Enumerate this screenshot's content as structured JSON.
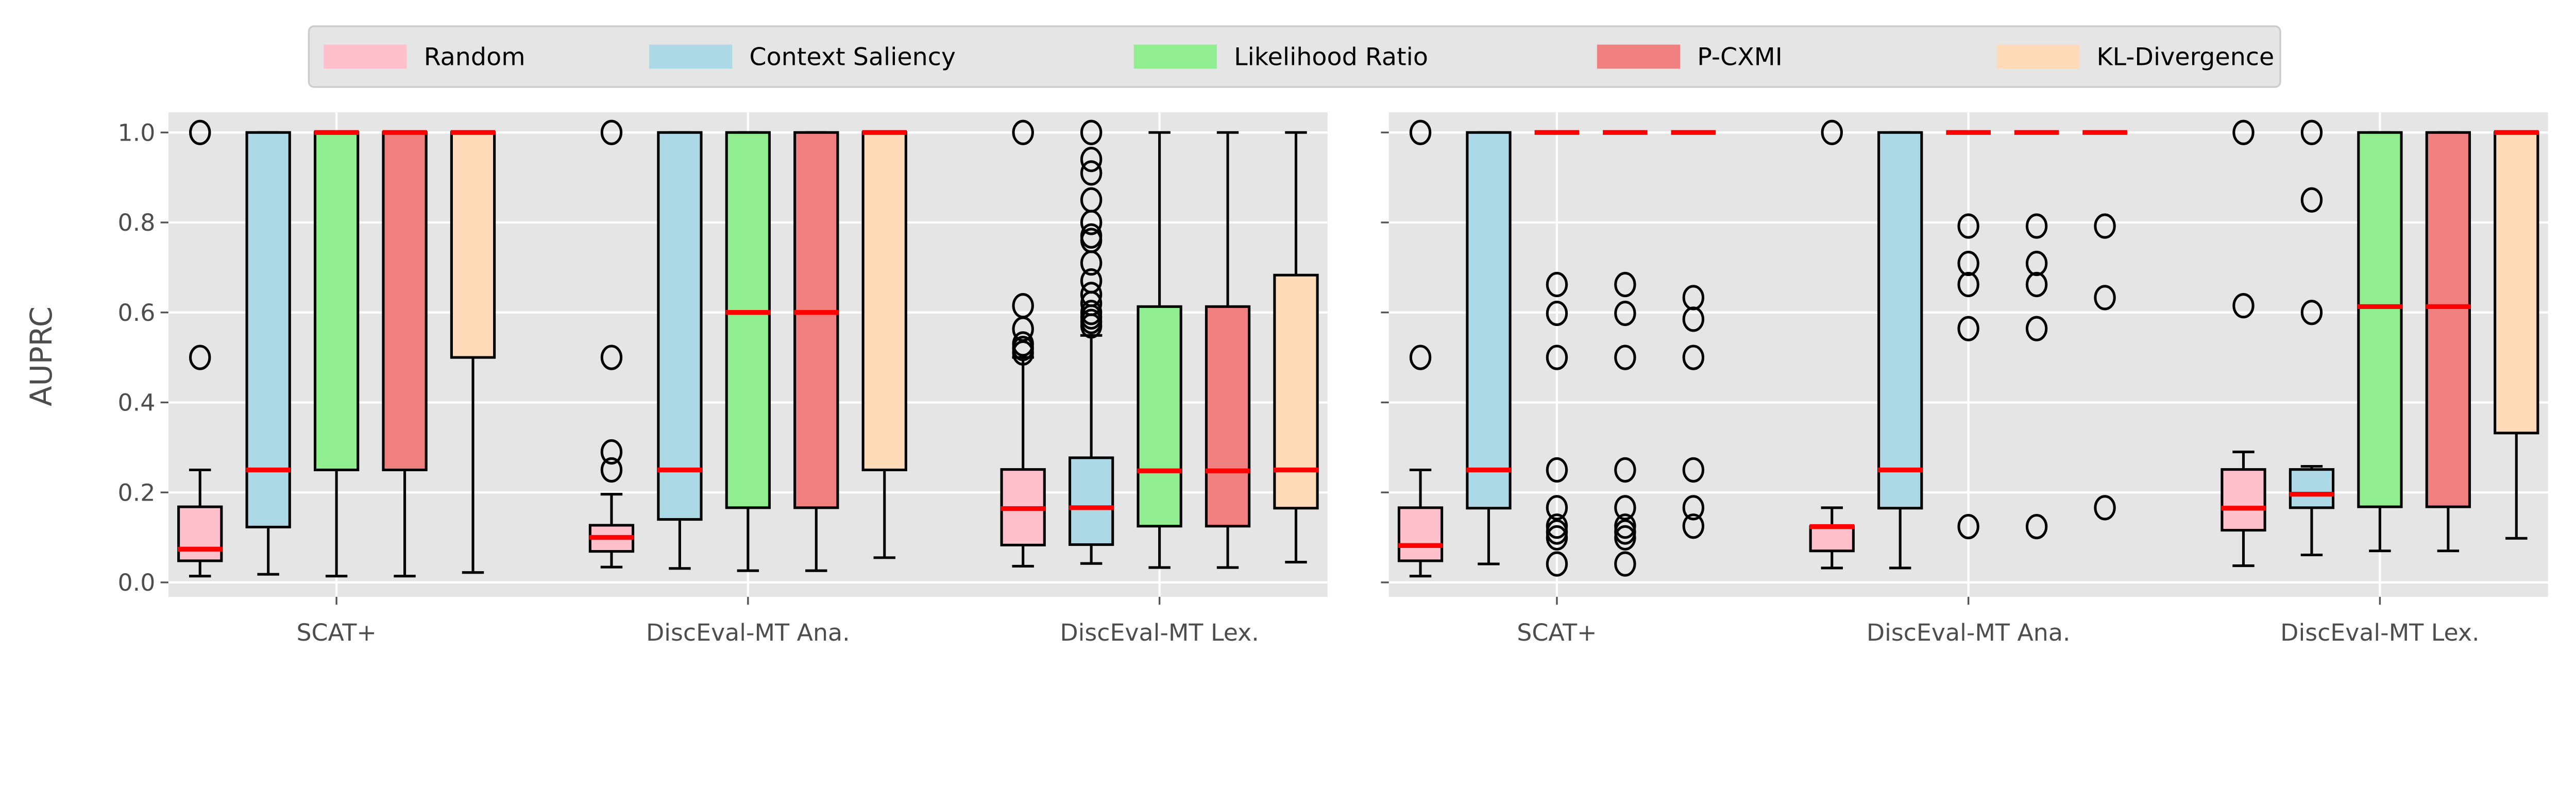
{
  "chart_data": {
    "type": "boxplot",
    "ylabel": "AUPRC",
    "ylim": [
      -0.035,
      1.035
    ],
    "yticks": [
      "0.0",
      "0.2",
      "0.4",
      "0.6",
      "0.8",
      "1.0"
    ],
    "grid": true,
    "legend_placement": "top-center",
    "categories": [
      "SCAT+",
      "DiscEval-MT Ana.",
      "DiscEval-MT Lex."
    ],
    "methods": [
      {
        "name": "Random",
        "color": "#ffc0cb"
      },
      {
        "name": "Context Saliency",
        "color": "#add8e6"
      },
      {
        "name": "Likelihood Ratio",
        "color": "#90ee90"
      },
      {
        "name": "P-CXMI",
        "color": "#f08080"
      },
      {
        "name": "KL-Divergence",
        "color": "#ffdab9"
      }
    ],
    "median_color": "#ff0000",
    "panels": [
      {
        "groups": [
          [
            {
              "whislo": 0.014,
              "q1": 0.048,
              "med": 0.074,
              "q3": 0.168,
              "whishi": 0.25,
              "fliers": [
                1.0,
                0.5
              ]
            },
            {
              "whislo": 0.018,
              "q1": 0.123,
              "med": 0.25,
              "q3": 1.0,
              "whishi": 1.0,
              "fliers": []
            },
            {
              "whislo": 0.014,
              "q1": 0.25,
              "med": 1.0,
              "q3": 1.0,
              "whishi": 1.0,
              "fliers": []
            },
            {
              "whislo": 0.014,
              "q1": 0.25,
              "med": 1.0,
              "q3": 1.0,
              "whishi": 1.0,
              "fliers": []
            },
            {
              "whislo": 0.022,
              "q1": 0.5,
              "med": 1.0,
              "q3": 1.0,
              "whishi": 1.0,
              "fliers": []
            }
          ],
          [
            {
              "whislo": 0.034,
              "q1": 0.069,
              "med": 0.1,
              "q3": 0.127,
              "whishi": 0.196,
              "fliers": [
                1.0,
                0.5,
                0.29,
                0.25
              ]
            },
            {
              "whislo": 0.031,
              "q1": 0.14,
              "med": 0.25,
              "q3": 1.0,
              "whishi": 1.0,
              "fliers": []
            },
            {
              "whislo": 0.026,
              "q1": 0.166,
              "med": 0.6,
              "q3": 1.0,
              "whishi": 1.0,
              "fliers": []
            },
            {
              "whislo": 0.026,
              "q1": 0.166,
              "med": 0.6,
              "q3": 1.0,
              "whishi": 1.0,
              "fliers": []
            },
            {
              "whislo": 0.055,
              "q1": 0.25,
              "med": 1.0,
              "q3": 1.0,
              "whishi": 1.0,
              "fliers": []
            }
          ],
          [
            {
              "whislo": 0.036,
              "q1": 0.083,
              "med": 0.164,
              "q3": 0.251,
              "whishi": 0.5,
              "fliers": [
                1.0,
                0.615,
                0.563,
                0.53,
                0.52,
                0.51
              ]
            },
            {
              "whislo": 0.042,
              "q1": 0.084,
              "med": 0.166,
              "q3": 0.277,
              "whishi": 0.549,
              "fliers": [
                1.0,
                0.94,
                0.91,
                0.85,
                0.8,
                0.77,
                0.76,
                0.71,
                0.67,
                0.64,
                0.62,
                0.6,
                0.59,
                0.58,
                0.57
              ]
            },
            {
              "whislo": 0.033,
              "q1": 0.125,
              "med": 0.248,
              "q3": 0.613,
              "whishi": 1.0,
              "fliers": []
            },
            {
              "whislo": 0.033,
              "q1": 0.125,
              "med": 0.248,
              "q3": 0.613,
              "whishi": 1.0,
              "fliers": []
            },
            {
              "whislo": 0.045,
              "q1": 0.165,
              "med": 0.25,
              "q3": 0.683,
              "whishi": 1.0,
              "fliers": []
            }
          ]
        ]
      },
      {
        "groups": [
          [
            {
              "whislo": 0.014,
              "q1": 0.048,
              "med": 0.082,
              "q3": 0.166,
              "whishi": 0.25,
              "fliers": [
                1.0,
                0.5
              ]
            },
            {
              "whislo": 0.041,
              "q1": 0.165,
              "med": 0.25,
              "q3": 1.0,
              "whishi": 1.0,
              "fliers": []
            },
            {
              "whislo": 1.0,
              "q1": 1.0,
              "med": 1.0,
              "q3": 1.0,
              "whishi": 1.0,
              "fliers": [
                0.662,
                0.598,
                0.5,
                0.25,
                0.166,
                0.125,
                0.112,
                0.099,
                0.041
              ]
            },
            {
              "whislo": 1.0,
              "q1": 1.0,
              "med": 1.0,
              "q3": 1.0,
              "whishi": 1.0,
              "fliers": [
                0.662,
                0.598,
                0.5,
                0.25,
                0.166,
                0.125,
                0.112,
                0.099,
                0.041
              ]
            },
            {
              "whislo": 1.0,
              "q1": 1.0,
              "med": 1.0,
              "q3": 1.0,
              "whishi": 1.0,
              "fliers": [
                0.633,
                0.585,
                0.5,
                0.25,
                0.166,
                0.125
              ]
            }
          ],
          [
            {
              "whislo": 0.032,
              "q1": 0.07,
              "med": 0.124,
              "q3": 0.124,
              "whishi": 0.166,
              "fliers": [
                1.0
              ]
            },
            {
              "whislo": 0.032,
              "q1": 0.165,
              "med": 0.25,
              "q3": 1.0,
              "whishi": 1.0,
              "fliers": []
            },
            {
              "whislo": 1.0,
              "q1": 1.0,
              "med": 1.0,
              "q3": 1.0,
              "whishi": 1.0,
              "fliers": [
                0.792,
                0.709,
                0.662,
                0.564,
                0.124
              ]
            },
            {
              "whislo": 1.0,
              "q1": 1.0,
              "med": 1.0,
              "q3": 1.0,
              "whishi": 1.0,
              "fliers": [
                0.792,
                0.709,
                0.662,
                0.564,
                0.124
              ]
            },
            {
              "whislo": 1.0,
              "q1": 1.0,
              "med": 1.0,
              "q3": 1.0,
              "whishi": 1.0,
              "fliers": [
                0.792,
                0.633,
                0.166
              ]
            }
          ],
          [
            {
              "whislo": 0.037,
              "q1": 0.116,
              "med": 0.165,
              "q3": 0.251,
              "whishi": 0.29,
              "fliers": [
                1.0,
                0.615
              ]
            },
            {
              "whislo": 0.061,
              "q1": 0.166,
              "med": 0.196,
              "q3": 0.251,
              "whishi": 0.258,
              "fliers": [
                1.0,
                0.85,
                0.6
              ]
            },
            {
              "whislo": 0.07,
              "q1": 0.168,
              "med": 0.613,
              "q3": 1.0,
              "whishi": 1.0,
              "fliers": []
            },
            {
              "whislo": 0.07,
              "q1": 0.168,
              "med": 0.613,
              "q3": 1.0,
              "whishi": 1.0,
              "fliers": []
            },
            {
              "whislo": 0.098,
              "q1": 0.332,
              "med": 1.0,
              "q3": 1.0,
              "whishi": 1.0,
              "fliers": []
            }
          ]
        ]
      }
    ]
  }
}
